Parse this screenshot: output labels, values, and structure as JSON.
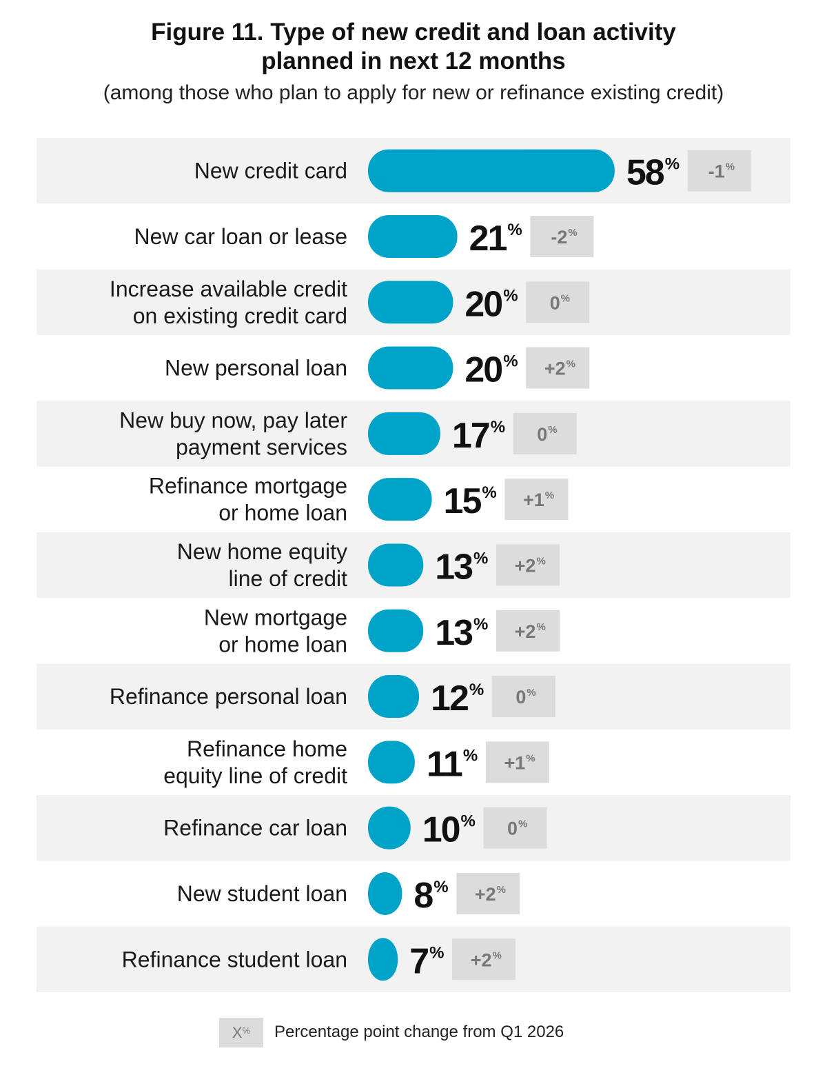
{
  "title_line1": "Figure 11. Type of new credit and loan activity",
  "title_line2": "planned in next 12 months",
  "subtitle": "(among those who plan to apply for new or refinance existing credit)",
  "chart_data": {
    "type": "bar",
    "orientation": "horizontal",
    "categories": [
      [
        "New credit card"
      ],
      [
        "New car loan or lease"
      ],
      [
        "Increase available credit",
        "on existing credit card"
      ],
      [
        "New personal loan"
      ],
      [
        "New buy now, pay later",
        "payment services"
      ],
      [
        "Refinance mortgage",
        "or home loan"
      ],
      [
        "New home equity",
        "line of credit"
      ],
      [
        "New mortgage",
        "or home loan"
      ],
      [
        "Refinance personal loan"
      ],
      [
        "Refinance home",
        "equity line of credit"
      ],
      [
        "Refinance car loan"
      ],
      [
        "New student loan"
      ],
      [
        "Refinance student loan"
      ]
    ],
    "values": [
      58,
      21,
      20,
      20,
      17,
      15,
      13,
      13,
      12,
      11,
      10,
      8,
      7
    ],
    "value_labels": [
      "58",
      "21",
      "20",
      "20",
      "17",
      "15",
      "13",
      "13",
      "12",
      "11",
      "10",
      "8",
      "7"
    ],
    "changes": [
      "-1",
      "-2",
      "0",
      "+2",
      "0",
      "+1",
      "+2",
      "+2",
      "0",
      "+1",
      "0",
      "+2",
      "+2"
    ],
    "unit": "%",
    "colors": {
      "bar": "#00a3c8",
      "row_stripe": "#f2f2f2",
      "change_box": "#dcdcdc",
      "change_text": "#777777"
    }
  },
  "legend": {
    "box_text": "X",
    "box_unit": "%",
    "text": "Percentage point change from Q1 2026"
  }
}
